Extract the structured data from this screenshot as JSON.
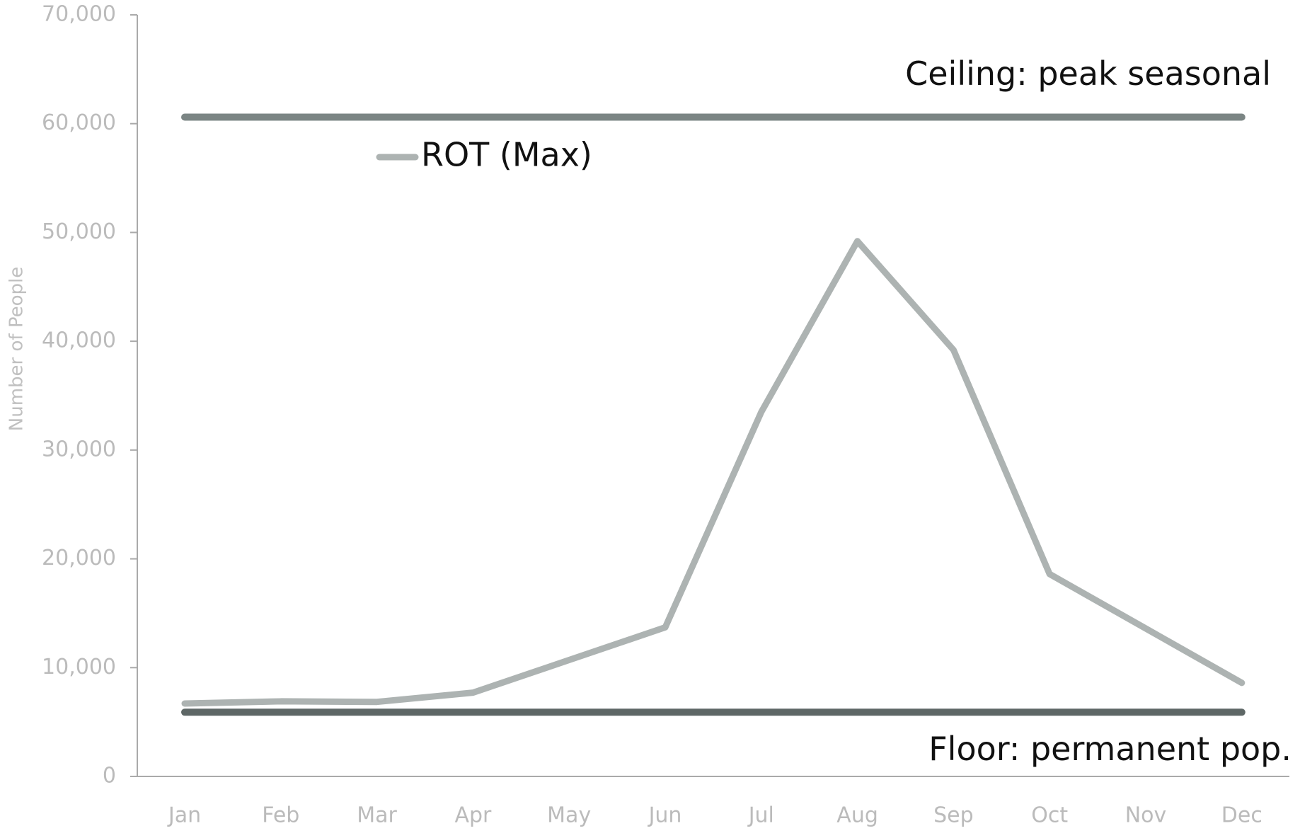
{
  "chart_data": {
    "type": "line",
    "y_axis_label": "Number of People",
    "categories": [
      "Jan",
      "Feb",
      "Mar",
      "Apr",
      "May",
      "Jun",
      "Jul",
      "Aug",
      "Sep",
      "Oct",
      "Nov",
      "Dec"
    ],
    "series": [
      {
        "name": "ROT (Max)",
        "color": "#adb3b2",
        "values": [
          6700,
          6900,
          6850,
          7700,
          10700,
          13700,
          33500,
          49200,
          39200,
          18600,
          13600,
          8600
        ]
      }
    ],
    "reference_lines": [
      {
        "label": "Ceiling: peak seasonal",
        "value": 60600,
        "color": "#7b8584"
      },
      {
        "label": "Floor: permanent pop.",
        "value": 5900,
        "color": "#5e6766"
      }
    ],
    "ylim": [
      0,
      70000
    ],
    "yticks": [
      0,
      {
        "value": 10000,
        "label": "10,000"
      },
      {
        "value": 20000,
        "label": "20,000"
      },
      {
        "value": 30000,
        "label": "30,000"
      },
      {
        "value": 40000,
        "label": "40,000"
      },
      {
        "value": 50000,
        "label": "50,000"
      },
      {
        "value": 60000,
        "label": "60,000"
      },
      {
        "value": 70000,
        "label": "70,000"
      }
    ]
  }
}
